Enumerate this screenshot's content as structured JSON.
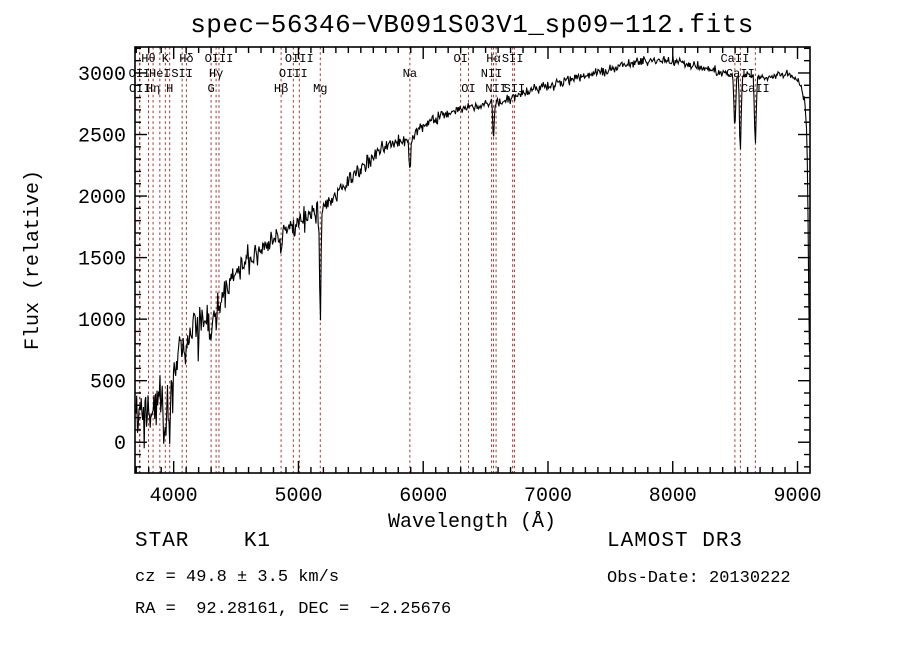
{
  "chart_data": {
    "type": "line",
    "title": "spec−56346−VB091S03V1_sp09−112.fits",
    "xlabel": "Wavelength (Å)",
    "ylabel": "Flux (relative)",
    "xlim": [
      3690,
      9100
    ],
    "ylim": [
      -250,
      3211
    ],
    "grid": false,
    "x_major_ticks": [
      4000,
      5000,
      6000,
      7000,
      8000,
      9000
    ],
    "x_minor_step": 100,
    "y_major_ticks": [
      0,
      500,
      1000,
      1500,
      2000,
      2500,
      3000
    ],
    "y_minor_step": 100,
    "trace_color": "#000000",
    "marker_line_color": "#a13832",
    "spectral_lines": [
      {
        "label": "OII",
        "wavelength": 3726,
        "row": 2
      },
      {
        "label": "OII",
        "wavelength": 3729,
        "row": 3
      },
      {
        "label": "Hθ",
        "wavelength": 3798,
        "row": 1
      },
      {
        "label": "Hη",
        "wavelength": 3835,
        "row": 3
      },
      {
        "label": "HeI",
        "wavelength": 3889,
        "row": 2
      },
      {
        "label": "K",
        "wavelength": 3933,
        "row": 1
      },
      {
        "label": "H",
        "wavelength": 3968,
        "row": 3
      },
      {
        "label": "SII",
        "wavelength": 4068,
        "row": 2
      },
      {
        "label": "Hδ",
        "wavelength": 4102,
        "row": 1
      },
      {
        "label": "G",
        "wavelength": 4300,
        "row": 3
      },
      {
        "label": "Hγ",
        "wavelength": 4340,
        "row": 2
      },
      {
        "label": "OIII",
        "wavelength": 4363,
        "row": 1
      },
      {
        "label": "Hβ",
        "wavelength": 4861,
        "row": 3
      },
      {
        "label": "OIII",
        "wavelength": 4959,
        "row": 2
      },
      {
        "label": "OIII",
        "wavelength": 5007,
        "row": 1
      },
      {
        "label": "Mg",
        "wavelength": 5175,
        "row": 3
      },
      {
        "label": "Na",
        "wavelength": 5893,
        "row": 2
      },
      {
        "label": "OI",
        "wavelength": 6300,
        "row": 1
      },
      {
        "label": "OI",
        "wavelength": 6363,
        "row": 3
      },
      {
        "label": "NII",
        "wavelength": 6548,
        "row": 2
      },
      {
        "label": "Hα",
        "wavelength": 6563,
        "row": 1
      },
      {
        "label": "NII",
        "wavelength": 6584,
        "row": 3
      },
      {
        "label": "SII",
        "wavelength": 6717,
        "row": 1
      },
      {
        "label": "SII",
        "wavelength": 6731,
        "row": 3
      },
      {
        "label": "CaII",
        "wavelength": 8498,
        "row": 1
      },
      {
        "label": "CaII",
        "wavelength": 8542,
        "row": 2
      },
      {
        "label": "CaII",
        "wavelength": 8662,
        "row": 3
      }
    ],
    "envelope": [
      [
        3690,
        200
      ],
      [
        3720,
        160
      ],
      [
        3750,
        280
      ],
      [
        3800,
        330
      ],
      [
        3840,
        290
      ],
      [
        3880,
        340
      ],
      [
        3930,
        390
      ],
      [
        3970,
        430
      ],
      [
        4000,
        600
      ],
      [
        4050,
        790
      ],
      [
        4100,
        860
      ],
      [
        4150,
        950
      ],
      [
        4250,
        980
      ],
      [
        4320,
        1060
      ],
      [
        4400,
        1220
      ],
      [
        4500,
        1400
      ],
      [
        4600,
        1500
      ],
      [
        4700,
        1550
      ],
      [
        4800,
        1660
      ],
      [
        4900,
        1720
      ],
      [
        5000,
        1800
      ],
      [
        5100,
        1870
      ],
      [
        5200,
        1900
      ],
      [
        5300,
        2000
      ],
      [
        5400,
        2120
      ],
      [
        5500,
        2230
      ],
      [
        5600,
        2320
      ],
      [
        5700,
        2400
      ],
      [
        5800,
        2450
      ],
      [
        5900,
        2470
      ],
      [
        6000,
        2570
      ],
      [
        6100,
        2630
      ],
      [
        6200,
        2670
      ],
      [
        6300,
        2700
      ],
      [
        6400,
        2730
      ],
      [
        6500,
        2750
      ],
      [
        6600,
        2760
      ],
      [
        6700,
        2800
      ],
      [
        6800,
        2840
      ],
      [
        6900,
        2870
      ],
      [
        7000,
        2900
      ],
      [
        7200,
        2950
      ],
      [
        7400,
        3000
      ],
      [
        7600,
        3060
      ],
      [
        7800,
        3100
      ],
      [
        7900,
        3110
      ],
      [
        8000,
        3100
      ],
      [
        8200,
        3050
      ],
      [
        8400,
        3000
      ],
      [
        8500,
        2980
      ],
      [
        8600,
        2990
      ],
      [
        8700,
        2960
      ],
      [
        8800,
        2970
      ],
      [
        8900,
        3000
      ],
      [
        9000,
        2950
      ],
      [
        9030,
        2900
      ],
      [
        9060,
        2750
      ],
      [
        9075,
        2500
      ],
      [
        9085,
        1800
      ],
      [
        9092,
        1000
      ],
      [
        9100,
        480
      ]
    ],
    "absorption_dips": [
      [
        3933,
        300,
        8
      ],
      [
        3968,
        300,
        8
      ],
      [
        4102,
        160,
        6
      ],
      [
        4300,
        200,
        9
      ],
      [
        4340,
        150,
        6
      ],
      [
        4861,
        180,
        6
      ],
      [
        5175,
        850,
        6
      ],
      [
        5893,
        280,
        6
      ],
      [
        6563,
        280,
        5
      ],
      [
        8498,
        430,
        7
      ],
      [
        8542,
        600,
        7
      ],
      [
        8662,
        550,
        7
      ]
    ],
    "noise_amp": [
      [
        3690,
        170
      ],
      [
        4000,
        120
      ],
      [
        4300,
        100
      ],
      [
        4600,
        85
      ],
      [
        5000,
        68
      ],
      [
        5400,
        55
      ],
      [
        5800,
        48
      ],
      [
        6200,
        42
      ],
      [
        6600,
        38
      ],
      [
        7000,
        34
      ],
      [
        7600,
        32
      ],
      [
        8200,
        30
      ],
      [
        9100,
        28
      ]
    ],
    "noise_seed": 911
  },
  "annotations": {
    "object_class": "STAR    K1",
    "cz": "cz = 49.8 ± 3.5 km/s",
    "ra_dec": "RA =  92.28161, DEC =  −2.25676",
    "survey": "LAMOST DR3",
    "obs_date": "Obs-Date: 20130222"
  }
}
